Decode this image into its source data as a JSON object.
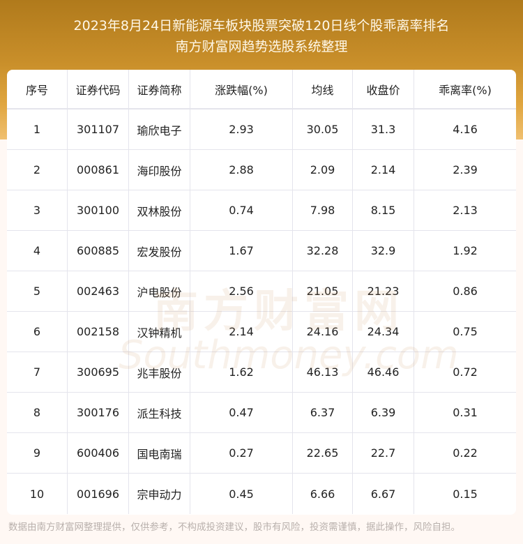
{
  "header": {
    "title": "2023年8月24日新能源车板块股票突破120日线个股乖离率排名",
    "subtitle": "南方财富网趋势选股系统整理"
  },
  "table": {
    "columns": [
      "序号",
      "证券代码",
      "证券简称",
      "涨跌幅(%)",
      "均线",
      "收盘价",
      "乖离率(%)"
    ],
    "rows": [
      [
        "1",
        "301107",
        "瑜欣电子",
        "2.93",
        "30.05",
        "31.3",
        "4.16"
      ],
      [
        "2",
        "000861",
        "海印股份",
        "2.88",
        "2.09",
        "2.14",
        "2.39"
      ],
      [
        "3",
        "300100",
        "双林股份",
        "0.74",
        "7.98",
        "8.15",
        "2.13"
      ],
      [
        "4",
        "600885",
        "宏发股份",
        "1.67",
        "32.28",
        "32.9",
        "1.92"
      ],
      [
        "5",
        "002463",
        "沪电股份",
        "2.56",
        "21.05",
        "21.23",
        "0.86"
      ],
      [
        "6",
        "002158",
        "汉钟精机",
        "2.14",
        "24.16",
        "24.34",
        "0.75"
      ],
      [
        "7",
        "300695",
        "兆丰股份",
        "1.62",
        "46.13",
        "46.46",
        "0.72"
      ],
      [
        "8",
        "300176",
        "派生科技",
        "0.47",
        "6.37",
        "6.39",
        "0.31"
      ],
      [
        "9",
        "600406",
        "国电南瑞",
        "0.27",
        "22.65",
        "22.7",
        "0.22"
      ],
      [
        "10",
        "001696",
        "宗申动力",
        "0.45",
        "6.66",
        "6.67",
        "0.15"
      ]
    ]
  },
  "watermark": {
    "cn": "南方财富网",
    "en": "Southmoney.com"
  },
  "footer": "数据由南方财富网整理提供，仅供参考，不构成投资建议，股市有风险，投资需谨慎，据此操作，风险自担。"
}
